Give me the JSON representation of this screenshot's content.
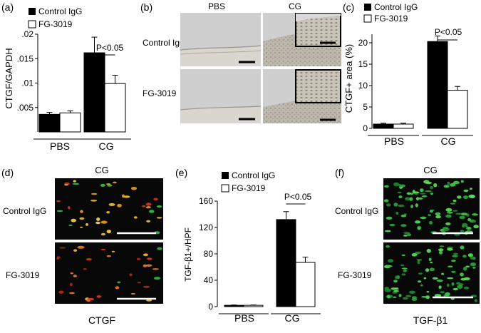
{
  "colors": {
    "control": "#000000",
    "fg": "#ffffff",
    "micro_bg": "#080808",
    "ihc_bg": "#cfcfcf"
  },
  "legend": {
    "control": "Control IgG",
    "fg": "FG-3019"
  },
  "panel_a": {
    "label": "(a)",
    "chart_data": {
      "type": "bar",
      "ylabel": "CTGF/GAPDH",
      "ylim": [
        0,
        0.02
      ],
      "yticks": [
        ".005",
        ".01",
        ".015",
        ".02"
      ],
      "groups": [
        "PBS",
        "CG"
      ],
      "series": [
        {
          "name": "Control IgG",
          "values": [
            0.0036,
            0.0162
          ],
          "errors": [
            0.0004,
            0.0032
          ]
        },
        {
          "name": "FG-3019",
          "values": [
            0.0039,
            0.0099
          ],
          "errors": [
            0.0004,
            0.0017
          ]
        }
      ],
      "annotation": "P<0.05",
      "legend_position": "top-left"
    }
  },
  "panel_b": {
    "label": "(b)",
    "col_labels": [
      "PBS",
      "CG"
    ],
    "row_labels": [
      "Control IgG",
      "FG-3019"
    ]
  },
  "panel_c": {
    "label": "(c)",
    "chart_data": {
      "type": "bar",
      "ylabel": "CTGF+ area (%)",
      "ylim": [
        0,
        22
      ],
      "yticks": [
        "0",
        "5",
        "10",
        "15",
        "20"
      ],
      "groups": [
        "PBS",
        "CG"
      ],
      "series": [
        {
          "name": "Control IgG",
          "values": [
            1.0,
            20.3
          ],
          "errors": [
            0.2,
            1.3
          ]
        },
        {
          "name": "FG-3019",
          "values": [
            1.0,
            8.9
          ],
          "errors": [
            0.2,
            0.9
          ]
        }
      ],
      "annotation": "P<0.05",
      "legend_position": "top-left"
    }
  },
  "panel_d": {
    "label": "(d)",
    "title": "CG",
    "row_labels": [
      "Control IgG",
      "FG-3019"
    ],
    "caption": "CTGF"
  },
  "panel_e": {
    "label": "(e)",
    "chart_data": {
      "type": "bar",
      "ylabel": "TGF-β1+/HPF",
      "ylim": [
        0,
        160
      ],
      "yticks": [
        "0",
        "40",
        "80",
        "120",
        "160"
      ],
      "groups": [
        "PBS",
        "CG"
      ],
      "series": [
        {
          "name": "Control IgG",
          "values": [
            2,
            132
          ],
          "errors": [
            0.5,
            12
          ]
        },
        {
          "name": "FG-3019",
          "values": [
            2,
            67
          ],
          "errors": [
            0.5,
            8
          ]
        }
      ],
      "annotation": "P<0.05",
      "legend_position": "top-left"
    }
  },
  "panel_f": {
    "label": "(f)",
    "title": "CG",
    "row_labels": [
      "Control IgG",
      "FG-3019"
    ],
    "caption": "TGF-β1"
  }
}
